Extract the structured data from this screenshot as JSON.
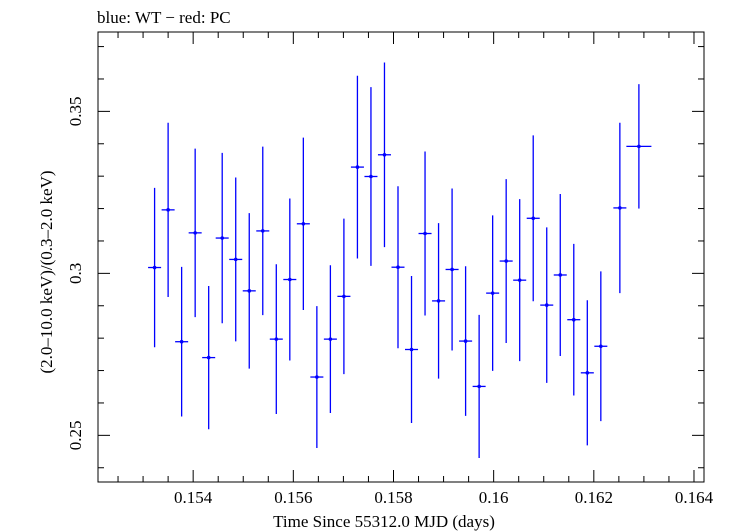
{
  "chart_data": {
    "type": "scatter",
    "title": "blue: WT − red: PC",
    "xlabel": "Time Since 55312.0 MJD (days)",
    "ylabel": "(2.0–10.0 keV)/(0.3–2.0 keV)",
    "xlim": [
      0.1521,
      0.1642
    ],
    "ylim": [
      0.2356,
      0.3745
    ],
    "x_ticks": [
      {
        "value": 0.154,
        "label": "0.154"
      },
      {
        "value": 0.156,
        "label": "0.156"
      },
      {
        "value": 0.158,
        "label": "0.158"
      },
      {
        "value": 0.16,
        "label": "0.16"
      },
      {
        "value": 0.162,
        "label": "0.162"
      },
      {
        "value": 0.164,
        "label": "0.164"
      }
    ],
    "y_ticks": [
      {
        "value": 0.25,
        "label": "0.25"
      },
      {
        "value": 0.3,
        "label": "0.3"
      },
      {
        "value": 0.35,
        "label": "0.35"
      }
    ],
    "grid": false,
    "series": [
      {
        "color": "#0000ff",
        "points": [
          {
            "x": 0.15323,
            "y": 0.3018,
            "xerr": 0.00013,
            "yerr": 0.0246
          },
          {
            "x": 0.1535,
            "y": 0.3196,
            "xerr": 0.00013,
            "yerr": 0.0269
          },
          {
            "x": 0.15377,
            "y": 0.2789,
            "xerr": 0.00013,
            "yerr": 0.0231
          },
          {
            "x": 0.15404,
            "y": 0.3125,
            "xerr": 0.00013,
            "yerr": 0.026
          },
          {
            "x": 0.15431,
            "y": 0.274,
            "xerr": 0.00013,
            "yerr": 0.0221
          },
          {
            "x": 0.15458,
            "y": 0.3109,
            "xerr": 0.00013,
            "yerr": 0.0263
          },
          {
            "x": 0.15485,
            "y": 0.3043,
            "xerr": 0.00013,
            "yerr": 0.0253
          },
          {
            "x": 0.15512,
            "y": 0.2946,
            "xerr": 0.00013,
            "yerr": 0.024
          },
          {
            "x": 0.15539,
            "y": 0.3131,
            "xerr": 0.00013,
            "yerr": 0.026
          },
          {
            "x": 0.15566,
            "y": 0.2797,
            "xerr": 0.00013,
            "yerr": 0.0231
          },
          {
            "x": 0.15593,
            "y": 0.2981,
            "xerr": 0.00013,
            "yerr": 0.025
          },
          {
            "x": 0.1562,
            "y": 0.3153,
            "xerr": 0.00013,
            "yerr": 0.0266
          },
          {
            "x": 0.15647,
            "y": 0.268,
            "xerr": 0.00013,
            "yerr": 0.0219
          },
          {
            "x": 0.15674,
            "y": 0.2797,
            "xerr": 0.00013,
            "yerr": 0.0228
          },
          {
            "x": 0.15701,
            "y": 0.2929,
            "xerr": 0.00013,
            "yerr": 0.024
          },
          {
            "x": 0.15728,
            "y": 0.3328,
            "xerr": 0.00013,
            "yerr": 0.0282
          },
          {
            "x": 0.15755,
            "y": 0.3299,
            "xerr": 0.00013,
            "yerr": 0.0276
          },
          {
            "x": 0.15782,
            "y": 0.3366,
            "xerr": 0.00013,
            "yerr": 0.0285
          },
          {
            "x": 0.15809,
            "y": 0.3019,
            "xerr": 0.00013,
            "yerr": 0.025
          },
          {
            "x": 0.15836,
            "y": 0.2765,
            "xerr": 0.00013,
            "yerr": 0.0227
          },
          {
            "x": 0.15863,
            "y": 0.3123,
            "xerr": 0.00013,
            "yerr": 0.0253
          },
          {
            "x": 0.1589,
            "y": 0.2915,
            "xerr": 0.00013,
            "yerr": 0.024
          },
          {
            "x": 0.15917,
            "y": 0.3012,
            "xerr": 0.00013,
            "yerr": 0.025
          },
          {
            "x": 0.15944,
            "y": 0.2791,
            "xerr": 0.00013,
            "yerr": 0.0231
          },
          {
            "x": 0.15971,
            "y": 0.2651,
            "xerr": 0.00013,
            "yerr": 0.0221
          },
          {
            "x": 0.15998,
            "y": 0.2939,
            "xerr": 0.00013,
            "yerr": 0.024
          },
          {
            "x": 0.16025,
            "y": 0.3038,
            "xerr": 0.00013,
            "yerr": 0.0253
          },
          {
            "x": 0.16052,
            "y": 0.2979,
            "xerr": 0.00013,
            "yerr": 0.025
          },
          {
            "x": 0.16079,
            "y": 0.317,
            "xerr": 0.00013,
            "yerr": 0.0256
          },
          {
            "x": 0.16106,
            "y": 0.2902,
            "xerr": 0.00013,
            "yerr": 0.024
          },
          {
            "x": 0.16133,
            "y": 0.2995,
            "xerr": 0.00013,
            "yerr": 0.025
          },
          {
            "x": 0.1616,
            "y": 0.2857,
            "xerr": 0.00013,
            "yerr": 0.0234
          },
          {
            "x": 0.16187,
            "y": 0.2693,
            "xerr": 0.00013,
            "yerr": 0.0224
          },
          {
            "x": 0.16214,
            "y": 0.2775,
            "xerr": 0.00013,
            "yerr": 0.0231
          },
          {
            "x": 0.16252,
            "y": 0.3202,
            "xerr": 0.00013,
            "yerr": 0.0263
          },
          {
            "x": 0.1629,
            "y": 0.3392,
            "xerr": 0.00025,
            "yerr": 0.0192
          }
        ]
      }
    ]
  }
}
